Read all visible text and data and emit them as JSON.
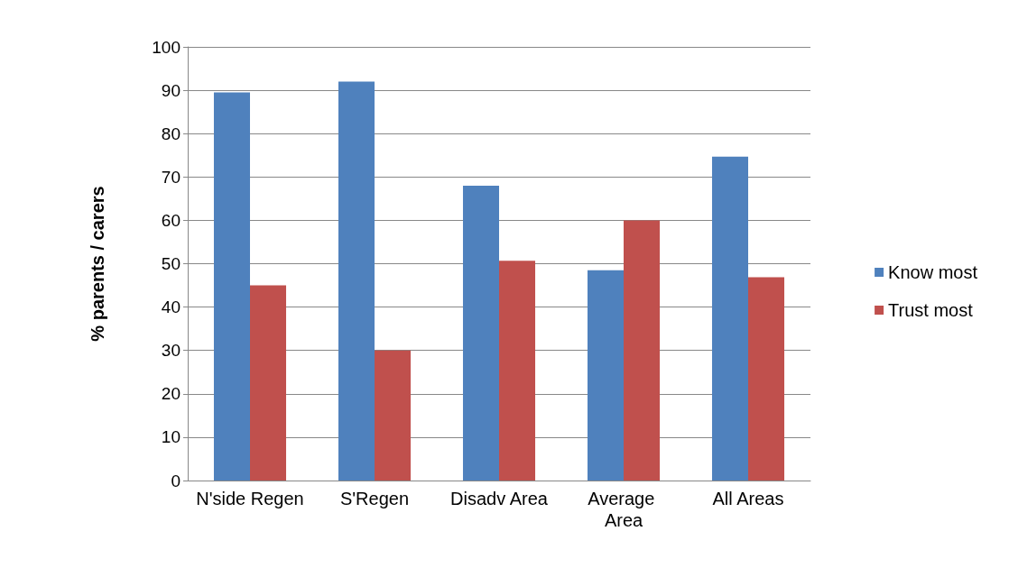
{
  "chart_data": {
    "type": "bar",
    "ylabel": "% parents / carers",
    "categories": [
      "N'side Regen",
      "S'Regen",
      "Disadv Area",
      "Average Area",
      "All Areas"
    ],
    "series": [
      {
        "name": "Know most",
        "color": "#4f81bd",
        "values": [
          89.5,
          92,
          68,
          48.5,
          74.7
        ]
      },
      {
        "name": "Trust most",
        "color": "#c0504d",
        "values": [
          45,
          30,
          50.7,
          60,
          46.9
        ]
      }
    ],
    "ylim": [
      0,
      100
    ],
    "yticks": [
      0,
      10,
      20,
      30,
      40,
      50,
      60,
      70,
      80,
      90,
      100
    ],
    "grid": "y",
    "legend": "right"
  }
}
